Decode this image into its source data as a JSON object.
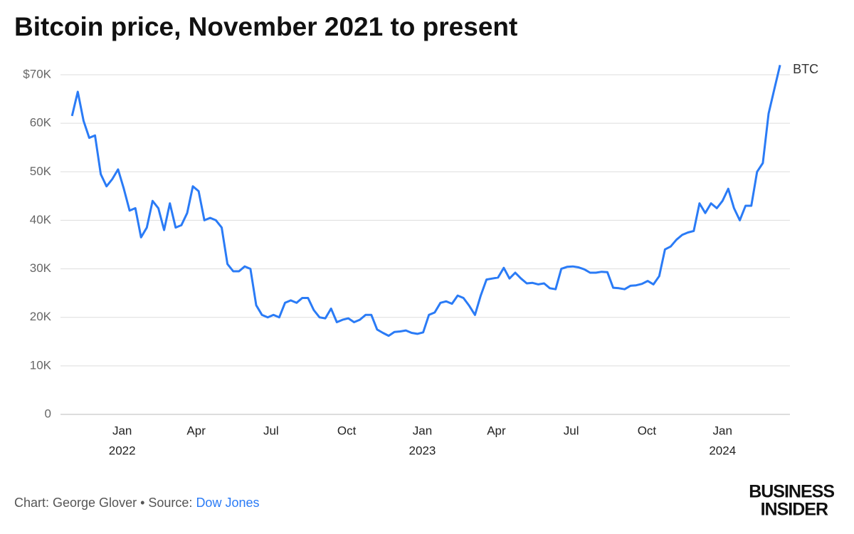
{
  "chart_data": {
    "type": "line",
    "title": "Bitcoin price, November 2021 to present",
    "x": [
      "2021-11-01",
      "2021-11-08",
      "2021-11-15",
      "2021-11-22",
      "2021-11-29",
      "2021-12-06",
      "2021-12-13",
      "2021-12-20",
      "2021-12-27",
      "2022-01-03",
      "2022-01-10",
      "2022-01-17",
      "2022-01-24",
      "2022-01-31",
      "2022-02-07",
      "2022-02-14",
      "2022-02-21",
      "2022-02-28",
      "2022-03-07",
      "2022-03-14",
      "2022-03-21",
      "2022-03-28",
      "2022-04-04",
      "2022-04-11",
      "2022-04-18",
      "2022-04-25",
      "2022-05-02",
      "2022-05-09",
      "2022-05-16",
      "2022-05-23",
      "2022-05-30",
      "2022-06-06",
      "2022-06-13",
      "2022-06-20",
      "2022-06-27",
      "2022-07-04",
      "2022-07-11",
      "2022-07-18",
      "2022-07-25",
      "2022-08-01",
      "2022-08-08",
      "2022-08-15",
      "2022-08-22",
      "2022-08-29",
      "2022-09-05",
      "2022-09-12",
      "2022-09-19",
      "2022-09-26",
      "2022-10-03",
      "2022-10-10",
      "2022-10-17",
      "2022-10-24",
      "2022-10-31",
      "2022-11-07",
      "2022-11-14",
      "2022-11-21",
      "2022-11-28",
      "2022-12-05",
      "2022-12-12",
      "2022-12-19",
      "2022-12-26",
      "2023-01-02",
      "2023-01-09",
      "2023-01-16",
      "2023-01-23",
      "2023-01-30",
      "2023-02-06",
      "2023-02-13",
      "2023-02-20",
      "2023-02-27",
      "2023-03-06",
      "2023-03-13",
      "2023-03-20",
      "2023-03-27",
      "2023-04-03",
      "2023-04-10",
      "2023-04-17",
      "2023-04-24",
      "2023-05-01",
      "2023-05-08",
      "2023-05-15",
      "2023-05-22",
      "2023-05-29",
      "2023-06-05",
      "2023-06-12",
      "2023-06-19",
      "2023-06-26",
      "2023-07-03",
      "2023-07-10",
      "2023-07-17",
      "2023-07-24",
      "2023-07-31",
      "2023-08-07",
      "2023-08-14",
      "2023-08-21",
      "2023-08-28",
      "2023-09-04",
      "2023-09-11",
      "2023-09-18",
      "2023-09-25",
      "2023-10-02",
      "2023-10-09",
      "2023-10-16",
      "2023-10-23",
      "2023-10-30",
      "2023-11-06",
      "2023-11-13",
      "2023-11-20",
      "2023-11-27",
      "2023-12-04",
      "2023-12-11",
      "2023-12-18",
      "2023-12-25",
      "2024-01-01",
      "2024-01-08",
      "2024-01-15",
      "2024-01-22",
      "2024-01-29",
      "2024-02-05",
      "2024-02-12",
      "2024-02-19",
      "2024-02-26",
      "2024-03-04",
      "2024-03-11"
    ],
    "series": [
      {
        "name": "BTC",
        "color": "#2a7bf6",
        "values": [
          61500,
          66500,
          60500,
          57000,
          57500,
          49500,
          47000,
          48500,
          50500,
          46500,
          42000,
          42500,
          36500,
          38500,
          44000,
          42500,
          38000,
          43500,
          38500,
          39000,
          41500,
          47000,
          46000,
          40000,
          40500,
          40000,
          38500,
          31000,
          29500,
          29500,
          30500,
          30000,
          22500,
          20500,
          20000,
          20500,
          20000,
          23000,
          23500,
          23000,
          24000,
          24000,
          21500,
          20000,
          19800,
          21800,
          19000,
          19500,
          19800,
          19000,
          19500,
          20500,
          20500,
          17500,
          16800,
          16200,
          17000,
          17100,
          17300,
          16800,
          16600,
          16900,
          20500,
          21000,
          23000,
          23300,
          22800,
          24500,
          24000,
          22400,
          20500,
          24500,
          27800,
          28000,
          28200,
          30200,
          28000,
          29200,
          28000,
          27000,
          27100,
          26800,
          27000,
          26000,
          25800,
          30000,
          30400,
          30500,
          30300,
          29900,
          29200,
          29200,
          29400,
          29300,
          26100,
          26000,
          25800,
          26500,
          26600,
          26900,
          27500,
          26800,
          28500,
          34000,
          34600,
          36000,
          37000,
          37500,
          37800,
          43500,
          41500,
          43500,
          42500,
          44000,
          46500,
          42500,
          40000,
          43000,
          43000,
          50000,
          51800,
          62000,
          67000,
          72000
        ]
      }
    ],
    "xlim": [
      "2021-10-18",
      "2024-03-23"
    ],
    "xticks": [
      {
        "value": "2022-01-01",
        "label": "Jan"
      },
      {
        "value": "2022-04-01",
        "label": "Apr"
      },
      {
        "value": "2022-07-01",
        "label": "Jul"
      },
      {
        "value": "2022-10-01",
        "label": "Oct"
      },
      {
        "value": "2023-01-01",
        "label": "Jan"
      },
      {
        "value": "2023-04-01",
        "label": "Apr"
      },
      {
        "value": "2023-07-01",
        "label": "Jul"
      },
      {
        "value": "2023-10-01",
        "label": "Oct"
      },
      {
        "value": "2024-01-01",
        "label": "Jan"
      }
    ],
    "xtick_years": [
      {
        "value": "2022-01-01",
        "label": "2022"
      },
      {
        "value": "2023-01-01",
        "label": "2023"
      },
      {
        "value": "2024-01-01",
        "label": "2024"
      }
    ],
    "ylim": [
      0,
      70000
    ],
    "yticks": [
      0,
      {
        "value": 10000,
        "label": "10K"
      },
      {
        "value": 20000,
        "label": "20K"
      },
      {
        "value": 30000,
        "label": "30K"
      },
      {
        "value": 40000,
        "label": "40K"
      },
      {
        "value": 50000,
        "label": "50K"
      },
      {
        "value": 60000,
        "label": "60K"
      },
      {
        "value": 70000,
        "label": "$70K"
      }
    ],
    "grid": true,
    "credit": "Chart: George Glover • Source:",
    "source": "Dow Jones",
    "logo": [
      "BUSINESS",
      "INSIDER"
    ]
  }
}
